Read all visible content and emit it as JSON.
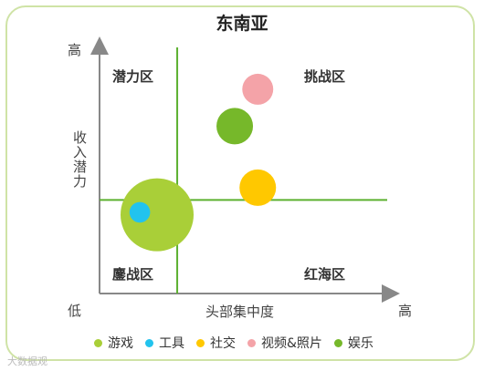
{
  "chart_data": {
    "type": "bubble",
    "title": "东南亚",
    "xlabel": "头部集中度",
    "ylabel": "收入潜力",
    "x_low_label": "",
    "x_high_label": "高",
    "y_high_label": "高",
    "y_low_label": "低",
    "xlim": [
      0,
      100
    ],
    "ylim": [
      0,
      100
    ],
    "divider_x": 27,
    "divider_y": 38,
    "quadrants": {
      "top_left": "潜力区",
      "top_right": "挑战区",
      "bottom_left": "鏖战区",
      "bottom_right": "红海区"
    },
    "series": [
      {
        "name": "游戏",
        "color": "#a9cf38",
        "x": 20,
        "y": 32,
        "size": 100
      },
      {
        "name": "工具",
        "color": "#22c3ee",
        "x": 14,
        "y": 33,
        "size": 8
      },
      {
        "name": "社交",
        "color": "#ffc800",
        "x": 55,
        "y": 43,
        "size": 25
      },
      {
        "name": "视频&照片",
        "color": "#f4a3a8",
        "x": 55,
        "y": 83,
        "size": 18
      },
      {
        "name": "娱乐",
        "color": "#76b82a",
        "x": 47,
        "y": 68,
        "size": 25
      }
    ]
  },
  "watermark": "大数据观"
}
